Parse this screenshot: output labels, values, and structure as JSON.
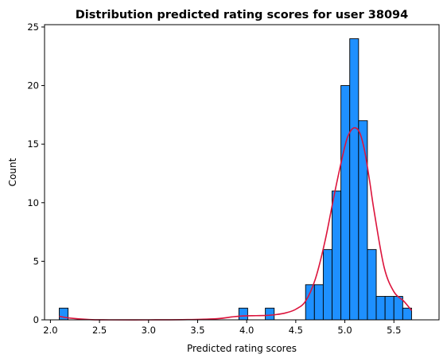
{
  "chart_data": {
    "type": "bar",
    "title": "Distribution predicted rating scores for user 38094",
    "xlabel": "Predicted rating scores",
    "ylabel": "Count",
    "xlim": [
      1.94,
      5.96
    ],
    "ylim": [
      0,
      25.2
    ],
    "xticks": [
      2.0,
      2.5,
      3.0,
      3.5,
      4.0,
      4.5,
      5.0,
      5.5
    ],
    "xtick_labels": [
      "2.0",
      "2.5",
      "3.0",
      "3.5",
      "4.0",
      "4.5",
      "5.0",
      "5.5"
    ],
    "yticks": [
      0,
      5,
      10,
      15,
      20,
      25
    ],
    "ytick_labels": [
      "0",
      "5",
      "10",
      "15",
      "20",
      "25"
    ],
    "grid": false,
    "bar_color": "#1e90ff",
    "kde_color": "#dc143c",
    "bins": [
      {
        "x0": 2.09,
        "x1": 2.18,
        "count": 1
      },
      {
        "x0": 3.92,
        "x1": 4.01,
        "count": 1
      },
      {
        "x0": 4.19,
        "x1": 4.28,
        "count": 1
      },
      {
        "x0": 4.6,
        "x1": 4.69,
        "count": 3
      },
      {
        "x0": 4.69,
        "x1": 4.78,
        "count": 3
      },
      {
        "x0": 4.78,
        "x1": 4.87,
        "count": 6
      },
      {
        "x0": 4.87,
        "x1": 4.96,
        "count": 11
      },
      {
        "x0": 4.96,
        "x1": 5.05,
        "count": 20
      },
      {
        "x0": 5.05,
        "x1": 5.14,
        "count": 24
      },
      {
        "x0": 5.14,
        "x1": 5.23,
        "count": 17
      },
      {
        "x0": 5.23,
        "x1": 5.32,
        "count": 6
      },
      {
        "x0": 5.32,
        "x1": 5.41,
        "count": 2
      },
      {
        "x0": 5.41,
        "x1": 5.5,
        "count": 2
      },
      {
        "x0": 5.5,
        "x1": 5.59,
        "count": 2
      },
      {
        "x0": 5.59,
        "x1": 5.68,
        "count": 1
      }
    ],
    "kde": {
      "x": [
        2.09,
        2.2,
        2.4,
        2.6,
        3.0,
        3.4,
        3.7,
        3.85,
        3.95,
        4.05,
        4.2,
        4.3,
        4.4,
        4.5,
        4.6,
        4.7,
        4.8,
        4.9,
        5.0,
        5.05,
        5.1,
        5.15,
        5.2,
        5.25,
        5.3,
        5.4,
        5.5,
        5.6,
        5.68
      ],
      "y": [
        0.3,
        0.15,
        0.02,
        0.0,
        0.0,
        0.02,
        0.1,
        0.25,
        0.33,
        0.35,
        0.38,
        0.45,
        0.6,
        0.9,
        1.6,
        3.5,
        6.8,
        11.0,
        14.8,
        16.0,
        16.4,
        16.0,
        14.5,
        12.0,
        9.2,
        4.5,
        2.4,
        1.6,
        0.8
      ]
    }
  }
}
